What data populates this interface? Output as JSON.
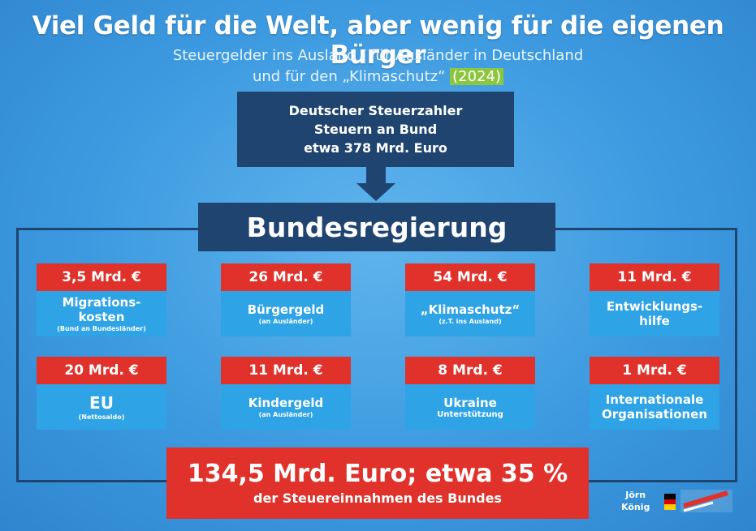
{
  "header": {
    "title": "Viel Geld für die Welt, aber wenig für die eigenen Bürger",
    "subtitle_line1": "Steuergelder ins Ausland / für Ausländer in Deutschland",
    "subtitle_line2_prefix": "und für den „Klimaschutz“",
    "subtitle_year": "(2024)"
  },
  "taxpayer": {
    "line1": "Deutscher Steuerzahler",
    "line2": "Steuern an Bund",
    "line3": "etwa 378 Mrd. Euro"
  },
  "government": {
    "label": "Bundesregierung"
  },
  "items": [
    {
      "amount": "3,5 Mrd. €",
      "label": "Migrations-",
      "label2": "kosten",
      "note": "(Bund an Bundesländer)"
    },
    {
      "amount": "26 Mrd. €",
      "label": "Bürgergeld",
      "label2": "",
      "note": "(an Ausländer)"
    },
    {
      "amount": "54 Mrd. €",
      "label": "„Klimaschutz“",
      "label2": "",
      "note": "(z.T. ins Ausland)"
    },
    {
      "amount": "11 Mrd. €",
      "label": "Entwicklungs-",
      "label2": "hilfe",
      "note": ""
    },
    {
      "amount": "20 Mrd. €",
      "label": "EU",
      "label2": "",
      "note": "(Nettosaldo)"
    },
    {
      "amount": "11 Mrd. €",
      "label": "Kindergeld",
      "label2": "",
      "note": "(an Ausländer)"
    },
    {
      "amount": "8 Mrd. €",
      "label": "Ukraine",
      "label2": "",
      "note": "Unterstützung"
    },
    {
      "amount": "1 Mrd. €",
      "label": "Internationale",
      "label2": "Organisationen",
      "note": ""
    }
  ],
  "total": {
    "line1": "134,5 Mrd. Euro; etwa 35 %",
    "line2": "der Steuereinnahmen des Bundes"
  },
  "footer": {
    "author_first": "Jörn",
    "author_last": "König",
    "logo": "afd-logo"
  },
  "colors": {
    "navy": "#1f4470",
    "red": "#e0312b",
    "card_blue": "#2ea3e6",
    "highlight": "#8cc63f"
  }
}
